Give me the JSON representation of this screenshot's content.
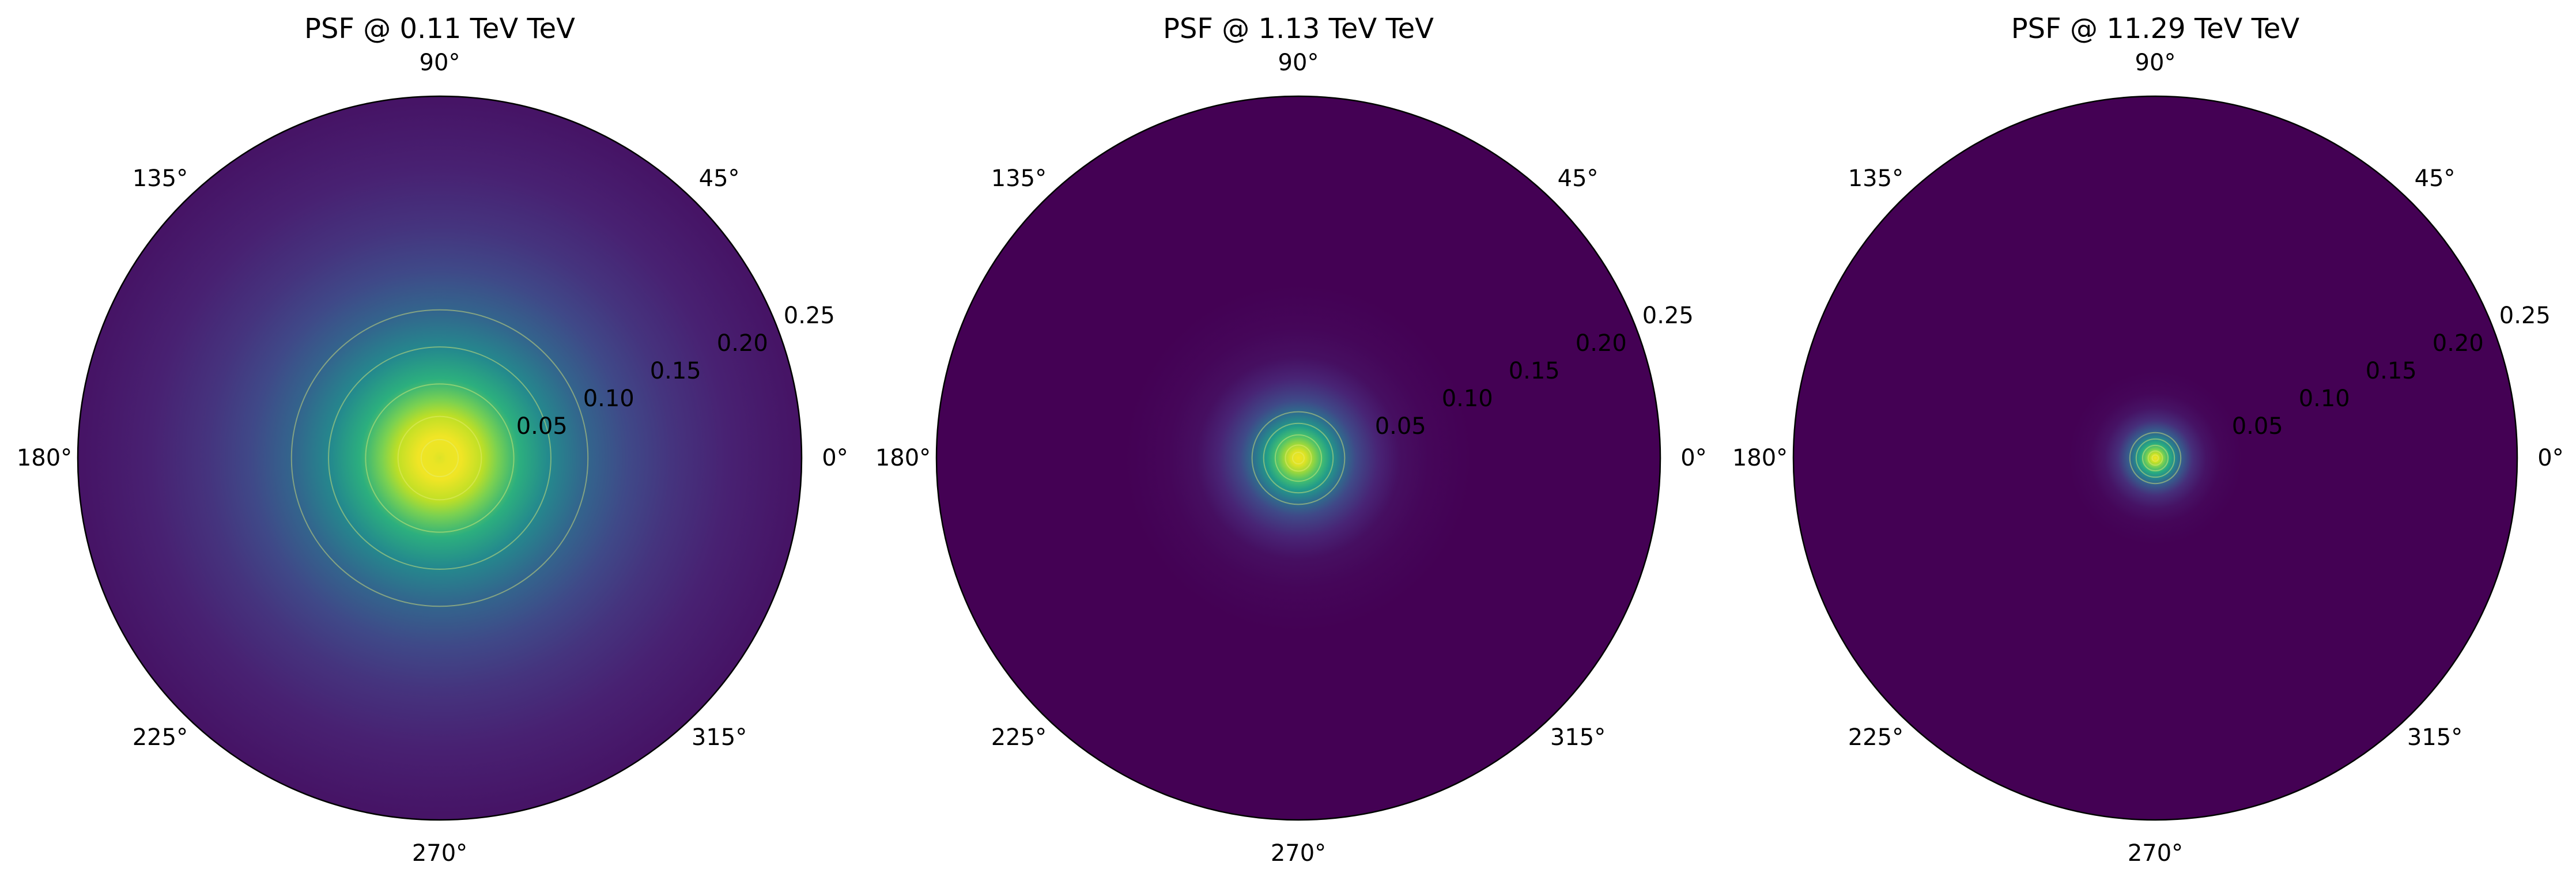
{
  "chart_data": [
    {
      "type": "heatmap",
      "projection": "polar",
      "title": "PSF @ 0.11 TeV TeV",
      "colormap": "viridis",
      "rlim": [
        0,
        0.25
      ],
      "radial_ticks": [
        {
          "value": 0.05,
          "label": "0.05"
        },
        {
          "value": 0.1,
          "label": "0.10"
        },
        {
          "value": 0.15,
          "label": "0.15"
        },
        {
          "value": 0.2,
          "label": "0.20"
        },
        {
          "value": 0.25,
          "label": "0.25"
        }
      ],
      "angle_ticks": [
        {
          "value": 0,
          "label": "0°"
        },
        {
          "value": 45,
          "label": "45°"
        },
        {
          "value": 90,
          "label": "90°"
        },
        {
          "value": 135,
          "label": "135°"
        },
        {
          "value": 180,
          "label": "180°"
        },
        {
          "value": 225,
          "label": "225°"
        },
        {
          "value": 270,
          "label": "270°"
        },
        {
          "value": 315,
          "label": "315°"
        }
      ],
      "psf_profile": [
        {
          "r": 0.0,
          "level": 0.95
        },
        {
          "r": 0.005,
          "level": 0.97
        },
        {
          "r": 0.015,
          "level": 0.98
        },
        {
          "r": 0.03,
          "level": 0.9
        },
        {
          "r": 0.04,
          "level": 0.8
        },
        {
          "r": 0.055,
          "level": 0.63
        },
        {
          "r": 0.075,
          "level": 0.47
        },
        {
          "r": 0.1,
          "level": 0.33
        },
        {
          "r": 0.13,
          "level": 0.22
        },
        {
          "r": 0.16,
          "level": 0.15
        },
        {
          "r": 0.2,
          "level": 0.09
        },
        {
          "r": 0.25,
          "level": 0.05
        }
      ],
      "grid": false
    },
    {
      "type": "heatmap",
      "projection": "polar",
      "title": "PSF @ 1.13 TeV TeV",
      "colormap": "viridis",
      "rlim": [
        0,
        0.25
      ],
      "radial_ticks": [
        {
          "value": 0.05,
          "label": "0.05"
        },
        {
          "value": 0.1,
          "label": "0.10"
        },
        {
          "value": 0.15,
          "label": "0.15"
        },
        {
          "value": 0.2,
          "label": "0.20"
        },
        {
          "value": 0.25,
          "label": "0.25"
        }
      ],
      "angle_ticks": [
        {
          "value": 0,
          "label": "0°"
        },
        {
          "value": 45,
          "label": "45°"
        },
        {
          "value": 90,
          "label": "90°"
        },
        {
          "value": 135,
          "label": "135°"
        },
        {
          "value": 180,
          "label": "180°"
        },
        {
          "value": 225,
          "label": "225°"
        },
        {
          "value": 270,
          "label": "270°"
        },
        {
          "value": 315,
          "label": "315°"
        }
      ],
      "psf_profile": [
        {
          "r": 0.0,
          "level": 0.98
        },
        {
          "r": 0.005,
          "level": 0.95
        },
        {
          "r": 0.01,
          "level": 0.85
        },
        {
          "r": 0.016,
          "level": 0.7
        },
        {
          "r": 0.022,
          "level": 0.55
        },
        {
          "r": 0.03,
          "level": 0.38
        },
        {
          "r": 0.04,
          "level": 0.22
        },
        {
          "r": 0.055,
          "level": 0.1
        },
        {
          "r": 0.07,
          "level": 0.04
        },
        {
          "r": 0.09,
          "level": 0.015
        },
        {
          "r": 0.12,
          "level": 0.0
        },
        {
          "r": 0.25,
          "level": 0.0
        }
      ],
      "grid": false
    },
    {
      "type": "heatmap",
      "projection": "polar",
      "title": "PSF @ 11.29 TeV TeV",
      "colormap": "viridis",
      "rlim": [
        0,
        0.25
      ],
      "radial_ticks": [
        {
          "value": 0.05,
          "label": "0.05"
        },
        {
          "value": 0.1,
          "label": "0.10"
        },
        {
          "value": 0.15,
          "label": "0.15"
        },
        {
          "value": 0.2,
          "label": "0.20"
        },
        {
          "value": 0.25,
          "label": "0.25"
        }
      ],
      "angle_ticks": [
        {
          "value": 0,
          "label": "0°"
        },
        {
          "value": 45,
          "label": "45°"
        },
        {
          "value": 90,
          "label": "90°"
        },
        {
          "value": 135,
          "label": "135°"
        },
        {
          "value": 180,
          "label": "180°"
        },
        {
          "value": 225,
          "label": "225°"
        },
        {
          "value": 270,
          "label": "270°"
        },
        {
          "value": 315,
          "label": "315°"
        }
      ],
      "psf_profile": [
        {
          "r": 0.0,
          "level": 0.98
        },
        {
          "r": 0.003,
          "level": 0.92
        },
        {
          "r": 0.006,
          "level": 0.8
        },
        {
          "r": 0.01,
          "level": 0.62
        },
        {
          "r": 0.014,
          "level": 0.45
        },
        {
          "r": 0.019,
          "level": 0.28
        },
        {
          "r": 0.026,
          "level": 0.13
        },
        {
          "r": 0.035,
          "level": 0.05
        },
        {
          "r": 0.045,
          "level": 0.015
        },
        {
          "r": 0.06,
          "level": 0.0
        },
        {
          "r": 0.25,
          "level": 0.0
        }
      ],
      "grid": false
    }
  ]
}
